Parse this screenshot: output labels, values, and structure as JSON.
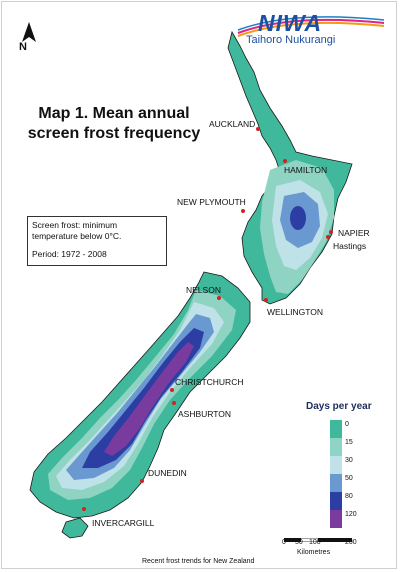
{
  "logo": {
    "brand": "NIWA",
    "subtitle": "Taihoro Nukurangi"
  },
  "north": {
    "label": "N"
  },
  "title": {
    "line1": "Map 1. Mean annual",
    "line2": "screen frost frequency"
  },
  "info": {
    "definition": "Screen frost: minimum temperature below 0°C.",
    "period": "Period: 1972 - 2008"
  },
  "cities": {
    "auckland": "AUCKLAND",
    "hamilton": "HAMILTON",
    "new_plymouth": "NEW PLYMOUTH",
    "napier": "NAPIER",
    "hastings": "Hastings",
    "nelson": "NELSON",
    "wellington": "WELLINGTON",
    "christchurch": "CHRISTCHURCH",
    "ashburton": "ASHBURTON",
    "dunedin": "DUNEDIN",
    "invercargill": "INVERCARGILL"
  },
  "legend": {
    "title": "Days per year",
    "ticks": [
      "0",
      "15",
      "30",
      "50",
      "80",
      "120"
    ],
    "colors": [
      "#3fb89b",
      "#8fd3c3",
      "#bfe1e8",
      "#6a98d0",
      "#2c3ea3",
      "#7a3b9e"
    ]
  },
  "scale": {
    "ticks": [
      "0",
      "50",
      "100",
      "200"
    ],
    "unit": "Kilometres"
  },
  "footer": "Recent frost trends for New Zealand"
}
